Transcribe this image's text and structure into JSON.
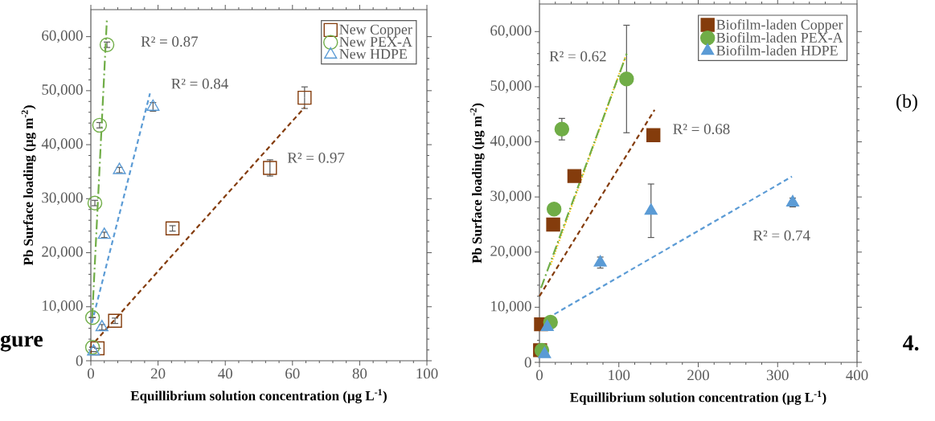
{
  "chart_data": [
    {
      "type": "scatter",
      "xlabel": "Equillibrium solution concentration (µg L$^{-1}$)",
      "ylabel": "Pb Surface loading (µg m$^{-2}$)",
      "xlim": [
        0,
        100
      ],
      "xticks": [
        0,
        20,
        40,
        60,
        80,
        100
      ],
      "ylim": [
        0,
        65000
      ],
      "yticks": [
        0,
        {
          "value": 10000,
          "label": "10,000"
        },
        {
          "value": 20000,
          "label": "20,000"
        },
        {
          "value": 30000,
          "label": "30,000"
        },
        {
          "value": 40000,
          "label": "40,000"
        },
        {
          "value": 50000,
          "label": "50,000"
        },
        {
          "value": 60000,
          "label": "60,000"
        }
      ],
      "legend": "top right",
      "grid": false,
      "series": [
        {
          "name": "New Copper",
          "marker": "square",
          "color": "#843c0c",
          "x": [
            2,
            7.2,
            24.3,
            53.3,
            63.6
          ],
          "values": [
            2300,
            7400,
            24500,
            35700,
            48700
          ],
          "errors": [
            null,
            500,
            500,
            1500,
            2000
          ]
        },
        {
          "name": "New PEX-A",
          "marker": "circle",
          "color": "#70ad47",
          "x": [
            0.5,
            0.5,
            1.2,
            2.6,
            4.8
          ],
          "values": [
            2500,
            8000,
            29200,
            43600,
            58500
          ],
          "errors": [
            null,
            null,
            500,
            500,
            500
          ]
        },
        {
          "name": "New HDPE",
          "marker": "triangle",
          "color": "#5b9bd5",
          "x": [
            0.8,
            3.3,
            4.0,
            8.5,
            18.5
          ],
          "values": [
            1700,
            6200,
            23300,
            35300,
            47000
          ],
          "errors": [
            null,
            500,
            500,
            500,
            800
          ]
        },
        {
          "type": "line",
          "marker": "none",
          "line_style": "dashed",
          "color": "#843c0c",
          "x": [
            1.2,
            63.6
          ],
          "values": [
            3500,
            46900
          ]
        },
        {
          "type": "line",
          "marker": "none",
          "line_style": "dashdot",
          "color": "#70ad47",
          "x": [
            0.4,
            4.8
          ],
          "values": [
            8000,
            63500
          ]
        },
        {
          "type": "line",
          "marker": "none",
          "line_style": "dashed",
          "color": "#5b9bd5",
          "x": [
            0.3,
            17.6
          ],
          "values": [
            7000,
            49500
          ]
        }
      ],
      "annotations": [
        "R² = 0.87",
        "R² = 0.84",
        "R² = 0.97",
        "gure"
      ]
    },
    {
      "type": "scatter",
      "xlabel": "Equillibrium solution concentration (µg L$^{-1}$)",
      "ylabel": "Pb Surface loading (µg m$^{-2}$)",
      "xlim": [
        0,
        400
      ],
      "xticks": [
        0,
        100,
        200,
        300,
        400
      ],
      "ylim": [
        0,
        65000
      ],
      "yticks": [
        0,
        {
          "value": 10000,
          "label": "10,000"
        },
        {
          "value": 20000,
          "label": "20,000"
        },
        {
          "value": 30000,
          "label": "30,000"
        },
        {
          "value": 40000,
          "label": "40,000"
        },
        {
          "value": 50000,
          "label": "50,000"
        },
        {
          "value": 60000,
          "label": "60,000"
        }
      ],
      "legend": "top right",
      "grid": false,
      "series": [
        {
          "name": "Biofilm-laden Copper",
          "marker": "square",
          "color": "#843c0c",
          "x": [
            0.8,
            2,
            17.3,
            44,
            143.5
          ],
          "values": [
            2200,
            6900,
            25000,
            33800,
            41200
          ]
        },
        {
          "name": "Biofilm-laden PEX-A",
          "marker": "circle",
          "color": "#70ad47",
          "x": [
            3,
            13.9,
            18.4,
            28.2,
            109.7
          ],
          "values": [
            2200,
            7300,
            27800,
            42300,
            51400
          ],
          "errors": [
            null,
            null,
            null,
            1950,
            9750
          ]
        },
        {
          "name": "Biofilm-laden HDPE",
          "marker": "triangle",
          "color": "#5b9bd5",
          "x": [
            6.4,
            9.8,
            76.6,
            140.5,
            319
          ],
          "values": [
            1500,
            6400,
            18100,
            27500,
            29000
          ],
          "errors": [
            null,
            null,
            1000,
            4850,
            800
          ]
        },
        {
          "type": "line",
          "marker": "none",
          "line_style": "dashed",
          "color": "#843c0c",
          "x": [
            0,
            145
          ],
          "values": [
            12000,
            45800
          ]
        },
        {
          "type": "line",
          "marker": "none",
          "line_style": "dotted",
          "color": "#ffc000",
          "x": [
            14,
            108.5
          ],
          "values": [
            17700,
            55500
          ]
        },
        {
          "type": "line",
          "marker": "none",
          "line_style": "dashdot",
          "color": "#70ad47",
          "x": [
            2,
            110
          ],
          "values": [
            13500,
            56000
          ]
        },
        {
          "type": "line",
          "marker": "none",
          "line_style": "dashed",
          "color": "#5b9bd5",
          "x": [
            10,
            318
          ],
          "values": [
            8000,
            33700
          ]
        }
      ],
      "annotations": [
        "R² = 0.62",
        "R² = 0.68",
        "R² = 0.74",
        "(b)",
        "4."
      ]
    }
  ]
}
